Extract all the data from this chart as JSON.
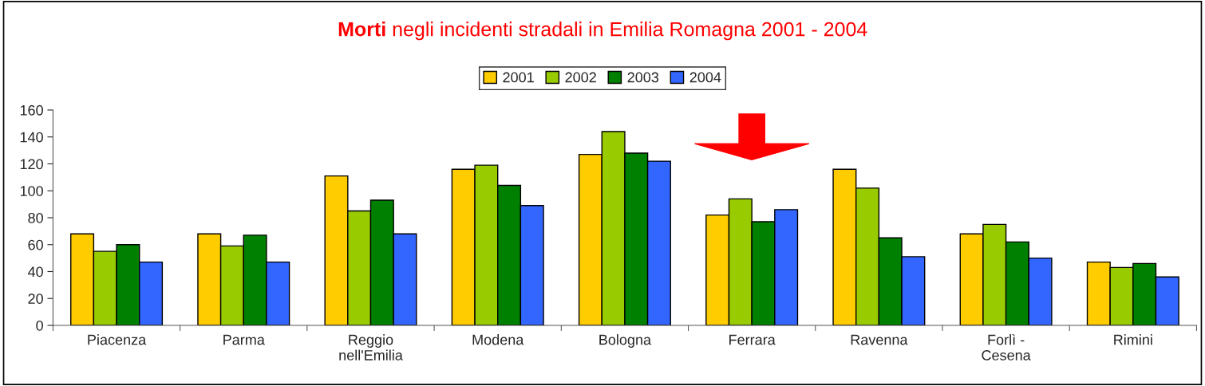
{
  "chart_data": {
    "type": "bar",
    "title": "Morti negli incidenti stradali in Emilia Romagna 2001 - 2004",
    "categories": [
      "Piacenza",
      "Parma",
      "Reggio\nnell'Emilia",
      "Modena",
      "Bologna",
      "Ferrara",
      "Ravenna",
      "Forlì -\nCesena",
      "Rimini"
    ],
    "series": [
      {
        "name": "2001",
        "color": "#ffcc00",
        "values": [
          68,
          68,
          111,
          116,
          127,
          82,
          116,
          68,
          47
        ]
      },
      {
        "name": "2002",
        "color": "#99cc00",
        "values": [
          55,
          59,
          85,
          119,
          144,
          94,
          102,
          75,
          43
        ]
      },
      {
        "name": "2003",
        "color": "#008000",
        "values": [
          60,
          67,
          93,
          104,
          128,
          77,
          65,
          62,
          46
        ]
      },
      {
        "name": "2004",
        "color": "#3366ff",
        "values": [
          47,
          47,
          68,
          89,
          122,
          86,
          51,
          50,
          36
        ]
      }
    ],
    "ylim": [
      0,
      160
    ],
    "yticks": [
      0,
      20,
      40,
      60,
      80,
      100,
      120,
      140,
      160
    ],
    "grid": false,
    "legend": "top"
  }
}
